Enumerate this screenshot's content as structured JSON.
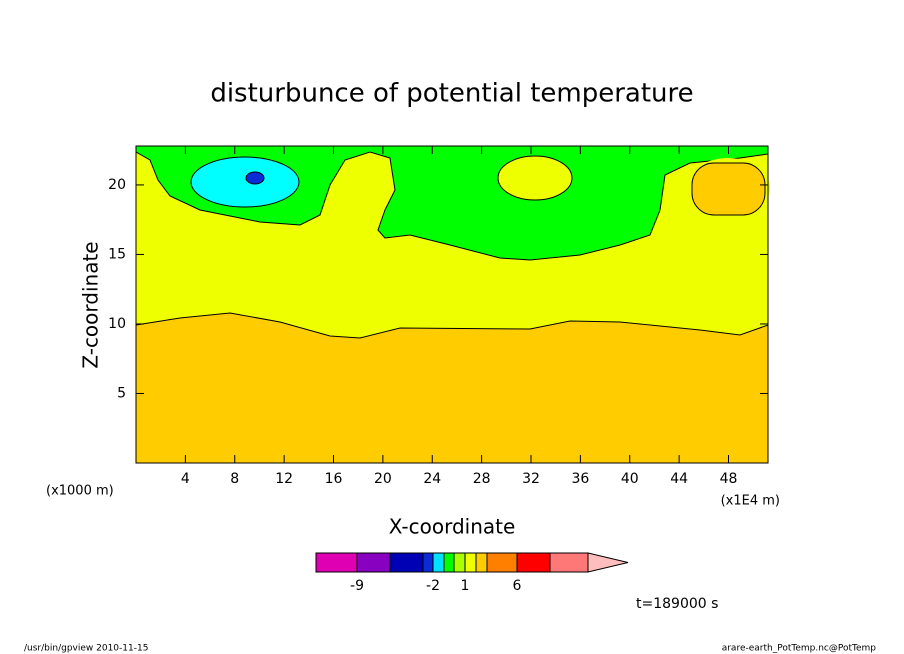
{
  "chart_data": {
    "type": "contour",
    "title": "disturbunce of potential temperature",
    "x_label": "X-coordinate",
    "y_label": "Z-coordinate",
    "x_unit_left": "(x1000 m)",
    "x_unit_right": "(x1E4 m)",
    "xlim": [
      0,
      51.2
    ],
    "xticks": [
      4,
      8,
      12,
      16,
      20,
      24,
      28,
      32,
      36,
      40,
      44,
      48
    ],
    "ylim": [
      0,
      22.8
    ],
    "yticks": [
      5,
      10,
      15,
      20
    ],
    "colorbar": {
      "colors": [
        "#e000b4",
        "#8800c0",
        "#0000b4",
        "#0a2bd6",
        "#00e0ff",
        "#00ff00",
        "#aaff00",
        "#eeff00",
        "#ffcc00",
        "#ff8000",
        "#ff0000",
        "#ff7878",
        "#ffbebe"
      ],
      "ticks": [
        -9,
        -2,
        1,
        6
      ]
    },
    "time_label": "t=189000 s",
    "footer_left": "/usr/bin/gpview  2010-11-15",
    "footer_right": "arare-earth_PotTemp.nc@PotTemp"
  }
}
